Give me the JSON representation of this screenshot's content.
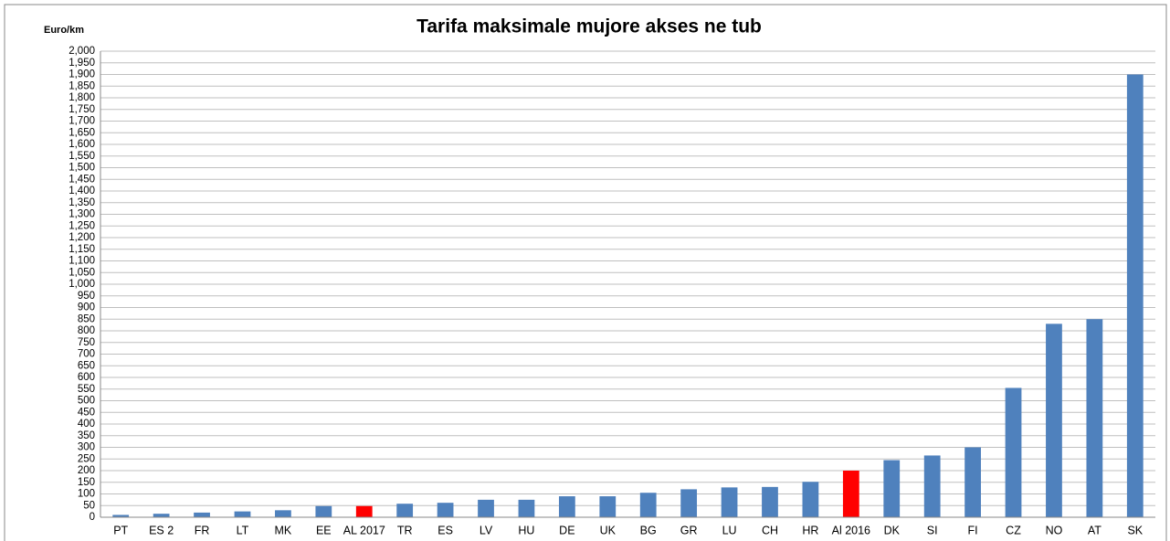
{
  "chart_data": {
    "type": "bar",
    "title": "Tarifa maksimale mujore akses ne tub",
    "y_label": "Euro/km",
    "categories": [
      "PT",
      "ES 2",
      "FR",
      "LT",
      "MK",
      "EE",
      "AL 2017",
      "TR",
      "ES",
      "LV",
      "HU",
      "DE",
      "UK",
      "BG",
      "GR",
      "LU",
      "CH",
      "HR",
      "Al 2016",
      "DK",
      "SI",
      "FI",
      "CZ",
      "NO",
      "AT",
      "SK"
    ],
    "values": [
      10,
      15,
      20,
      25,
      30,
      48,
      48,
      58,
      62,
      75,
      75,
      90,
      90,
      105,
      120,
      128,
      130,
      152,
      200,
      245,
      265,
      300,
      555,
      830,
      850,
      1900
    ],
    "colors": [
      "#4f81bd",
      "#4f81bd",
      "#4f81bd",
      "#4f81bd",
      "#4f81bd",
      "#4f81bd",
      "#ff0000",
      "#4f81bd",
      "#4f81bd",
      "#4f81bd",
      "#4f81bd",
      "#4f81bd",
      "#4f81bd",
      "#4f81bd",
      "#4f81bd",
      "#4f81bd",
      "#4f81bd",
      "#4f81bd",
      "#ff0000",
      "#4f81bd",
      "#4f81bd",
      "#4f81bd",
      "#4f81bd",
      "#4f81bd",
      "#4f81bd",
      "#4f81bd"
    ],
    "ylim": [
      0,
      2000
    ],
    "yticks": [
      0,
      50,
      100,
      150,
      200,
      250,
      300,
      350,
      400,
      450,
      500,
      550,
      600,
      650,
      700,
      750,
      800,
      850,
      900,
      950,
      {
        "value": 1000,
        "label": "1,000"
      },
      {
        "value": 1050,
        "label": "1,050"
      },
      {
        "value": 1100,
        "label": "1,100"
      },
      {
        "value": 1150,
        "label": "1,150"
      },
      {
        "value": 1200,
        "label": "1,200"
      },
      {
        "value": 1250,
        "label": "1,250"
      },
      {
        "value": 1300,
        "label": "1,300"
      },
      {
        "value": 1350,
        "label": "1,350"
      },
      {
        "value": 1400,
        "label": "1,400"
      },
      {
        "value": 1450,
        "label": "1,450"
      },
      {
        "value": 1500,
        "label": "1,500"
      },
      {
        "value": 1550,
        "label": "1,550"
      },
      {
        "value": 1600,
        "label": "1,600"
      },
      {
        "value": 1650,
        "label": "1,650"
      },
      {
        "value": 1700,
        "label": "1,700"
      },
      {
        "value": 1750,
        "label": "1,750"
      },
      {
        "value": 1800,
        "label": "1,800"
      },
      {
        "value": 1850,
        "label": "1,850"
      },
      {
        "value": 1900,
        "label": "1,900"
      },
      {
        "value": 1950,
        "label": "1,950"
      },
      {
        "value": 2000,
        "label": "2,000"
      }
    ],
    "grid": true
  }
}
